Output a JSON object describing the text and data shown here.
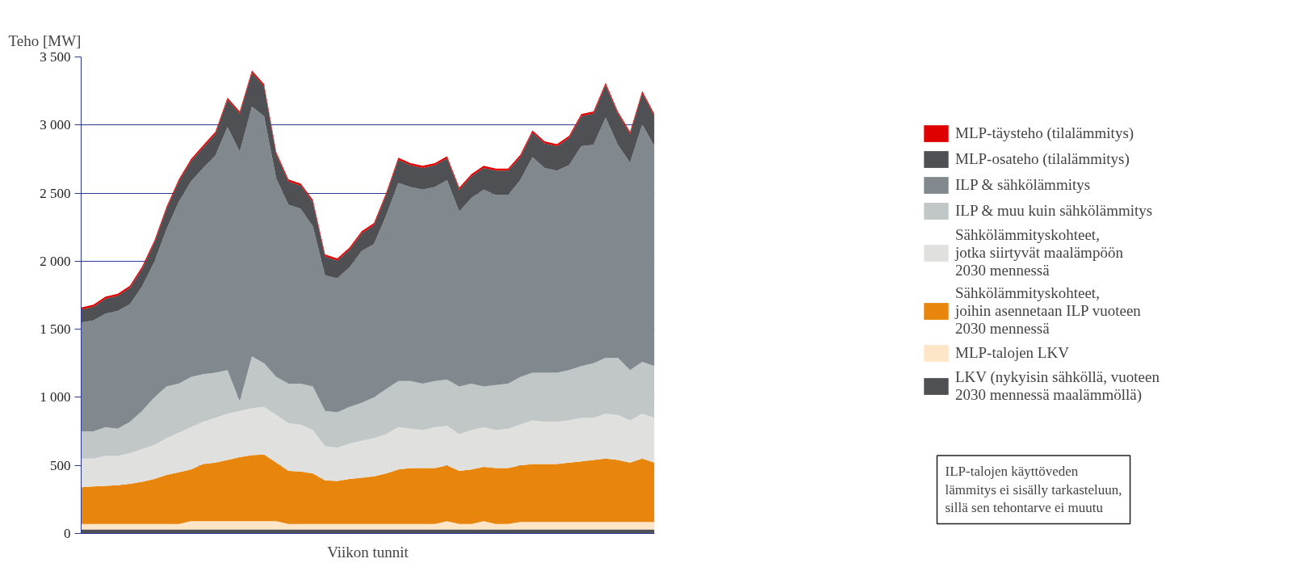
{
  "chart_data": {
    "type": "area",
    "stacked": true,
    "ylabel": "Teho [MW]",
    "xlabel": "Viikon tunnit",
    "categories": [
      null,
      null,
      null,
      null,
      null,
      null,
      null,
      null,
      null,
      null,
      null,
      null,
      null,
      null,
      null,
      null,
      null,
      null,
      null,
      null,
      null,
      null,
      null,
      null,
      null,
      null,
      null,
      null,
      null,
      null,
      null,
      null,
      null,
      null,
      null,
      null,
      null,
      null,
      null,
      null,
      null,
      null,
      null,
      null,
      null,
      null,
      null,
      null
    ],
    "ylim": [
      0,
      3500
    ],
    "yticks": [
      0,
      500,
      {
        "value": 1000,
        "label": "1 000"
      },
      {
        "value": 1500,
        "label": "1 500"
      },
      {
        "value": 2000,
        "label": "2 000"
      },
      {
        "value": 2500,
        "label": "2 500"
      },
      {
        "value": 3000,
        "label": "3 000"
      },
      {
        "value": 3500,
        "label": "3 500"
      }
    ],
    "tick_labels": "y",
    "grid": "y",
    "legend": "right",
    "series": [
      {
        "name": "LKV (nykyisin sähköllä, vuoteen\n2030 mennessä maalämmöllä)",
        "color": "#4f5054",
        "values": [
          30,
          30,
          30,
          30,
          30,
          30,
          30,
          30,
          30,
          30,
          30,
          30,
          30,
          30,
          30,
          30,
          30,
          30,
          30,
          30,
          30,
          30,
          30,
          30,
          30,
          30,
          30,
          30,
          30,
          30,
          30,
          30,
          30,
          30,
          30,
          30,
          30,
          30,
          30,
          30,
          30,
          30,
          30,
          30,
          30,
          30,
          30,
          30
        ]
      },
      {
        "name": "MLP-talojen LKV",
        "color": "#fde5c8",
        "values": [
          40,
          40,
          40,
          40,
          40,
          40,
          40,
          40,
          40,
          60,
          60,
          60,
          60,
          60,
          60,
          60,
          60,
          40,
          40,
          40,
          40,
          40,
          40,
          40,
          40,
          40,
          40,
          40,
          40,
          40,
          60,
          40,
          40,
          60,
          40,
          40,
          55,
          55,
          55,
          55,
          55,
          55,
          55,
          55,
          55,
          55,
          55,
          55
        ]
      },
      {
        "name": "Sähkölämmityskohteet,\njoihin asennetaan ILP vuoteen\n2030 mennessä",
        "color": "#e8850c",
        "values": [
          270,
          275,
          280,
          285,
          295,
          310,
          330,
          360,
          380,
          380,
          420,
          430,
          450,
          470,
          485,
          490,
          430,
          390,
          385,
          370,
          320,
          315,
          330,
          340,
          350,
          370,
          400,
          410,
          410,
          410,
          410,
          390,
          400,
          400,
          410,
          410,
          415,
          425,
          425,
          425,
          435,
          445,
          455,
          465,
          455,
          435,
          465,
          435
        ]
      },
      {
        "name": "Sähkölämmityskohteet,\njotka siirtyvät maalämpöön\n2030 mennessä",
        "color": "#e0e1de",
        "values": [
          210,
          205,
          220,
          215,
          225,
          240,
          250,
          270,
          290,
          310,
          310,
          330,
          340,
          340,
          345,
          350,
          350,
          350,
          345,
          320,
          250,
          245,
          260,
          270,
          280,
          290,
          310,
          290,
          280,
          300,
          290,
          270,
          290,
          290,
          280,
          290,
          300,
          320,
          310,
          310,
          310,
          320,
          310,
          330,
          330,
          310,
          330,
          330
        ]
      },
      {
        "name": "ILP & muu kuin sähkölämmitys",
        "color": "#c1c6c7",
        "values": [
          200,
          200,
          210,
          200,
          230,
          280,
          350,
          380,
          360,
          370,
          350,
          330,
          320,
          70,
          380,
          320,
          280,
          290,
          300,
          320,
          260,
          260,
          270,
          280,
          300,
          330,
          340,
          350,
          340,
          340,
          340,
          350,
          340,
          300,
          330,
          330,
          350,
          350,
          360,
          360,
          370,
          380,
          400,
          410,
          420,
          370,
          380,
          380
        ]
      },
      {
        "name": "ILP & sähkölämmitys",
        "color": "#81898e",
        "values": [
          800,
          815,
          835,
          865,
          865,
          915,
          995,
          1155,
          1335,
          1435,
          1515,
          1595,
          1785,
          1835,
          1835,
          1815,
          1455,
          1315,
          1285,
          1175,
          995,
          985,
          1025,
          1115,
          1125,
          1275,
          1455,
          1425,
          1425,
          1425,
          1465,
          1285,
          1365,
          1445,
          1395,
          1385,
          1445,
          1585,
          1505,
          1485,
          1505,
          1615,
          1605,
          1765,
          1565,
          1525,
          1745,
          1615
        ]
      },
      {
        "name": "MLP-osateho (tilalämmitys)",
        "color": "#4f5054",
        "values": [
          95,
          100,
          110,
          110,
          120,
          130,
          140,
          150,
          150,
          150,
          150,
          160,
          200,
          280,
          250,
          220,
          180,
          170,
          170,
          180,
          140,
          130,
          130,
          130,
          140,
          150,
          170,
          160,
          160,
          160,
          160,
          160,
          160,
          160,
          180,
          180,
          170,
          180,
          180,
          180,
          200,
          220,
          230,
          240,
          230,
          210,
          230,
          220
        ]
      },
      {
        "name": "MLP-täysteho (tilalämmitys)",
        "color": "#e00000",
        "values": [
          15,
          15,
          15,
          15,
          15,
          15,
          15,
          15,
          15,
          15,
          15,
          15,
          15,
          15,
          15,
          15,
          15,
          15,
          15,
          15,
          15,
          15,
          15,
          15,
          15,
          15,
          15,
          15,
          15,
          15,
          15,
          15,
          15,
          15,
          15,
          15,
          15,
          15,
          15,
          15,
          15,
          15,
          15,
          15,
          15,
          15,
          15,
          15
        ]
      }
    ],
    "annotations": [
      "ILP-talojen käyttöveden\nlämmitys ei sisälly tarkasteluun,\nsillä sen tehontarve ei muutu"
    ]
  }
}
